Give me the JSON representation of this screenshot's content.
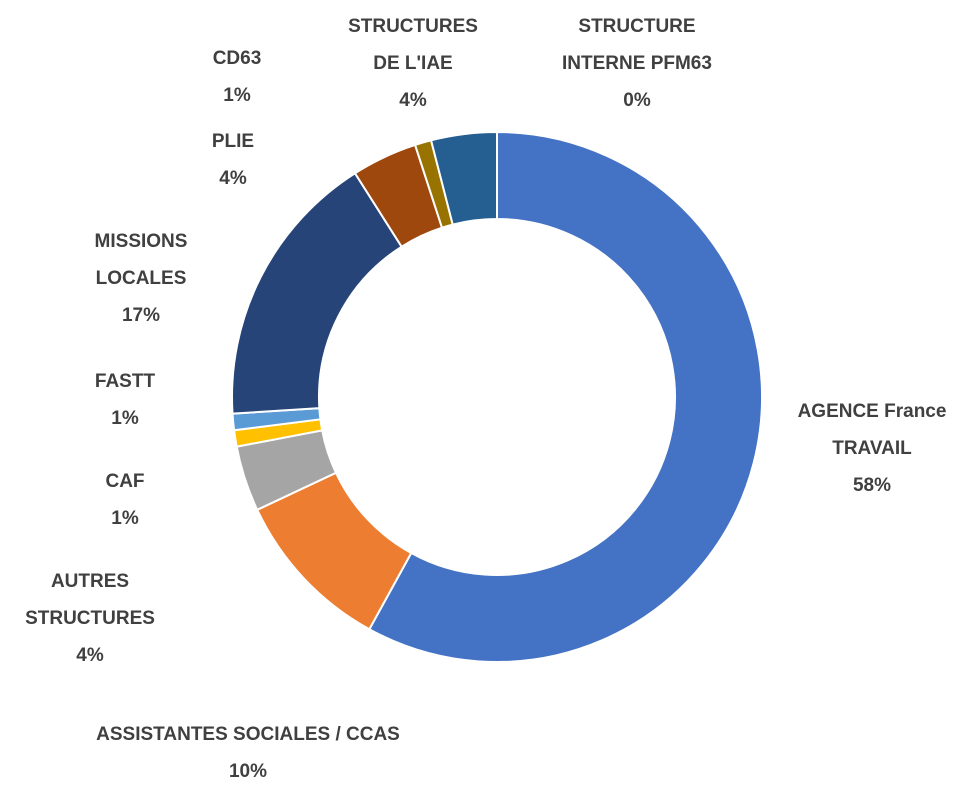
{
  "chart_data": {
    "type": "pie",
    "donut": true,
    "categories": [
      "AGENCE France TRAVAIL",
      "ASSISTANTES SOCIALES / CCAS",
      "AUTRES STRUCTURES",
      "CAF",
      "FASTT",
      "MISSIONS LOCALES",
      "PLIE",
      "CD63",
      "STRUCTURE INTERNE PFM63",
      "STRUCTURES DE L'IAE"
    ],
    "values": [
      58,
      10,
      4,
      1,
      1,
      17,
      4,
      1,
      0,
      4
    ],
    "value_labels": [
      "58%",
      "10%",
      "4%",
      "1%",
      "1%",
      "17%",
      "4%",
      "1%",
      "0%",
      "4%"
    ],
    "colors": [
      "#4472c4",
      "#ed7d31",
      "#a5a5a5",
      "#ffc000",
      "#5b9bd5",
      "#264478",
      "#9e480e",
      "#997300",
      "#636363",
      "#255e91"
    ]
  }
}
